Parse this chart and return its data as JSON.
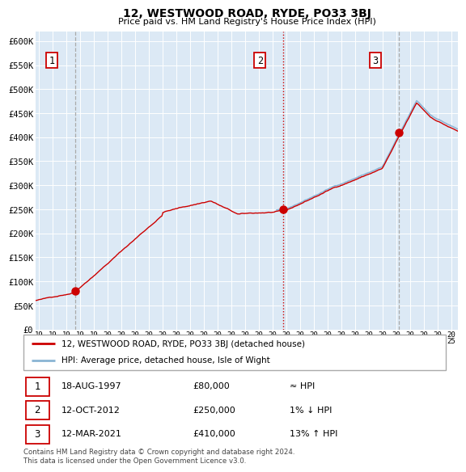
{
  "title": "12, WESTWOOD ROAD, RYDE, PO33 3BJ",
  "subtitle": "Price paid vs. HM Land Registry's House Price Index (HPI)",
  "background_color": "#dce9f5",
  "red_line_color": "#cc0000",
  "blue_line_color": "#8ab4d4",
  "grid_color": "#ffffff",
  "sale1": {
    "date_num": 1997.633,
    "price": 80000,
    "label": "1"
  },
  "sale2": {
    "date_num": 2012.783,
    "price": 250000,
    "label": "2"
  },
  "sale3": {
    "date_num": 2021.194,
    "price": 410000,
    "label": "3"
  },
  "xmin": 1994.75,
  "xmax": 2025.5,
  "ymin": 0,
  "ymax": 620000,
  "yticks": [
    0,
    50000,
    100000,
    150000,
    200000,
    250000,
    300000,
    350000,
    400000,
    450000,
    500000,
    550000,
    600000
  ],
  "ytick_labels": [
    "£0",
    "£50K",
    "£100K",
    "£150K",
    "£200K",
    "£250K",
    "£300K",
    "£350K",
    "£400K",
    "£450K",
    "£500K",
    "£550K",
    "£600K"
  ],
  "xtick_years": [
    1995,
    1996,
    1997,
    1998,
    1999,
    2000,
    2001,
    2002,
    2003,
    2004,
    2005,
    2006,
    2007,
    2008,
    2009,
    2010,
    2011,
    2012,
    2013,
    2014,
    2015,
    2016,
    2017,
    2018,
    2019,
    2020,
    2021,
    2022,
    2023,
    2024,
    2025
  ],
  "legend_label_red": "12, WESTWOOD ROAD, RYDE, PO33 3BJ (detached house)",
  "legend_label_blue": "HPI: Average price, detached house, Isle of Wight",
  "table_rows": [
    {
      "num": "1",
      "date": "18-AUG-1997",
      "price": "£80,000",
      "hpi": "≈ HPI"
    },
    {
      "num": "2",
      "date": "12-OCT-2012",
      "price": "£250,000",
      "hpi": "1% ↓ HPI"
    },
    {
      "num": "3",
      "date": "12-MAR-2021",
      "price": "£410,000",
      "hpi": "13% ↑ HPI"
    }
  ],
  "footnote": "Contains HM Land Registry data © Crown copyright and database right 2024.\nThis data is licensed under the Open Government Licence v3.0."
}
